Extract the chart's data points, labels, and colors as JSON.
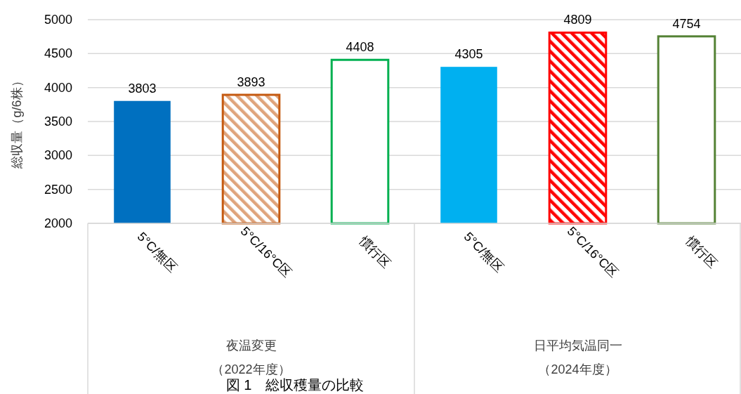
{
  "chart_data": {
    "type": "bar",
    "ylabel": "総収量（g/6株）",
    "categories": [
      "5°C/無区",
      "5°C/16°C区",
      "慣行区",
      "5°C/無区",
      "5°C/16°C区",
      "慣行区"
    ],
    "values": [
      3803,
      3893,
      4408,
      4305,
      4809,
      4754
    ],
    "colors": [
      "#0070c0",
      "#c55a11",
      "#00b050",
      "#00b0f0",
      "#ff0000",
      "#548235"
    ],
    "ylim": [
      2000,
      5000
    ],
    "yticks": [
      2000,
      2500,
      3000,
      3500,
      4000,
      4500,
      5000
    ],
    "grid": "y",
    "data_labels": true,
    "annotations": [
      "夜温変更",
      "（2022年度）",
      "日平均気温同一",
      "（2024年度）",
      "図 1　総収穫量の比較"
    ]
  }
}
